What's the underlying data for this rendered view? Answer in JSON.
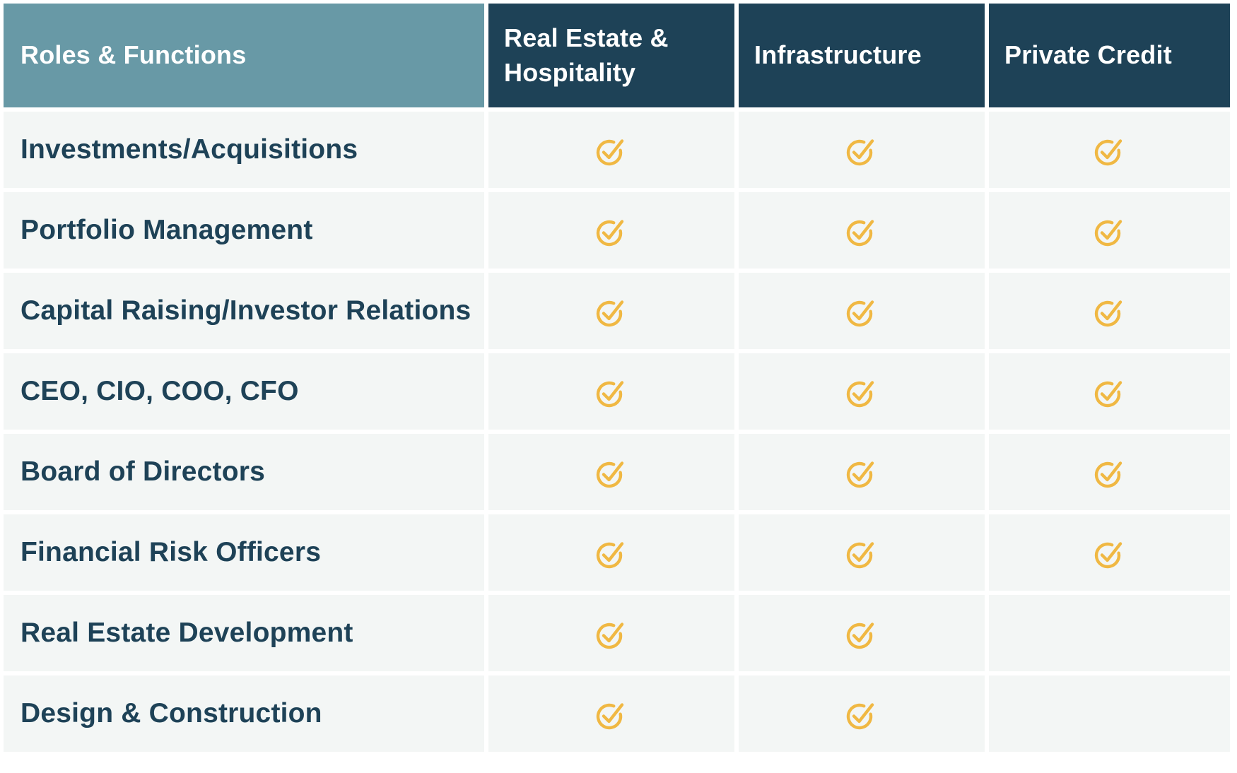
{
  "table": {
    "columns": [
      {
        "label": "Roles & Functions"
      },
      {
        "label": "Real Estate & Hospitality"
      },
      {
        "label": "Infrastructure"
      },
      {
        "label": "Private Credit"
      }
    ],
    "rows": [
      {
        "label": "Investments/Acquisitions",
        "checks": [
          true,
          true,
          true
        ]
      },
      {
        "label": "Portfolio Management",
        "checks": [
          true,
          true,
          true
        ]
      },
      {
        "label": "Capital Raising/Investor Relations",
        "checks": [
          true,
          true,
          true
        ]
      },
      {
        "label": "CEO, CIO, COO, CFO",
        "checks": [
          true,
          true,
          true
        ]
      },
      {
        "label": "Board of Directors",
        "checks": [
          true,
          true,
          true
        ]
      },
      {
        "label": "Financial Risk Officers",
        "checks": [
          true,
          true,
          true
        ]
      },
      {
        "label": "Real Estate Development",
        "checks": [
          true,
          true,
          false
        ]
      },
      {
        "label": "Design & Construction",
        "checks": [
          true,
          true,
          false
        ]
      }
    ]
  },
  "icons": {
    "check": {
      "name": "check-circle-icon",
      "color": "#F0B843"
    }
  },
  "colors": {
    "header_first_bg": "#6899A6",
    "header_col_bg": "#1E4257",
    "row_bg": "#F3F6F5",
    "label_text": "#1E4257",
    "header_text": "#FFFFFF",
    "check_gold": "#F0B843",
    "page_bg": "#FFFFFF"
  }
}
